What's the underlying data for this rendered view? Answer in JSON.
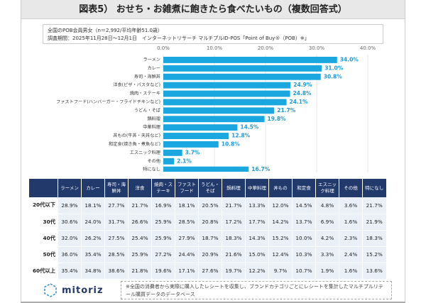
{
  "title": "図表5） おせち・お雑煮に飽きたら食べたいもの（複数回答式）",
  "info": {
    "line1": "全国のPOB会員男女（n＝2,992/平均年齢51.0歳）",
    "line2": "調査期間：2025年11月28日～12月1日　インターネットリサーチ マルチプルID-POS「Point of Buy®（POB）※」"
  },
  "chart_data": {
    "type": "bar",
    "orientation": "horizontal",
    "categories": [
      "ラーメン",
      "カレー",
      "寿司・海鮮丼",
      "洋食(ピザ・パスタなど)",
      "焼肉・ステーキ",
      "ファストフード(ハンバーガー・フライドチキンなど)",
      "うどん・そば",
      "鍋料理",
      "中華料理",
      "丼もの(牛丼・天丼など)",
      "和定食(焼き魚・煮魚など)",
      "エスニック料理",
      "その他",
      "特になし"
    ],
    "values": [
      34.0,
      31.0,
      30.8,
      24.9,
      24.8,
      24.1,
      21.7,
      19.8,
      14.5,
      12.8,
      10.8,
      3.7,
      2.1,
      16.7
    ],
    "data_labels": [
      "34.0%",
      "31.0%",
      "30.8%",
      "24.9%",
      "24.8%",
      "24.1%",
      "21.7%",
      "19.8%",
      "14.5%",
      "12.8%",
      "10.8%",
      "3.7%",
      "2.1%",
      "16.7%"
    ],
    "xlim": [
      0,
      40
    ],
    "ticks": [
      "0.0%",
      "10.0%",
      "20.0%",
      "30.0%",
      "40.0%"
    ],
    "color": "#1aa7e0",
    "grid": true
  },
  "table": {
    "headers": [
      "ラーメン",
      "カレー",
      "寿司・海鮮丼",
      "洋食",
      "焼肉・ステーキ",
      "ファストフード",
      "うどん・そば",
      "鍋料理",
      "中華料理",
      "丼もの",
      "和定食",
      "エスニック料理",
      "その他",
      "特になし"
    ],
    "rows": [
      {
        "label": "20代以下",
        "cells": [
          "28.9%",
          "18.1%",
          "27.7%",
          "21.7%",
          "16.9%",
          "18.1%",
          "20.5%",
          "21.7%",
          "13.3%",
          "12.0%",
          "14.5%",
          "4.8%",
          "3.6%",
          "21.7%"
        ]
      },
      {
        "label": "30代",
        "cells": [
          "30.6%",
          "24.0%",
          "31.7%",
          "26.6%",
          "25.9%",
          "28.5%",
          "20.8%",
          "17.2%",
          "17.7%",
          "14.2%",
          "13.7%",
          "6.9%",
          "1.6%",
          "21.9%"
        ]
      },
      {
        "label": "40代",
        "cells": [
          "32.0%",
          "26.2%",
          "27.5%",
          "25.4%",
          "25.9%",
          "27.9%",
          "18.7%",
          "18.3%",
          "14.3%",
          "15.2%",
          "10.0%",
          "4.2%",
          "2.3%",
          "18.3%"
        ]
      },
      {
        "label": "50代",
        "cells": [
          "36.0%",
          "35.4%",
          "28.5%",
          "25.9%",
          "27.2%",
          "24.4%",
          "20.9%",
          "21.6%",
          "15.0%",
          "12.4%",
          "10.3%",
          "3.3%",
          "2.4%",
          "15.2%"
        ]
      },
      {
        "label": "60代以上",
        "cells": [
          "35.4%",
          "34.8%",
          "38.6%",
          "21.8%",
          "19.6%",
          "17.1%",
          "27.6%",
          "19.7%",
          "12.2%",
          "9.7%",
          "10.7%",
          "1.9%",
          "1.6%",
          "13.6%"
        ]
      }
    ]
  },
  "logo": "mitoriz",
  "note": "※全国の消費者から実際に購入したレシートを収集し、ブランドカテゴリごとにレシートを集計したマルチプルリテール購買データのデータベース"
}
